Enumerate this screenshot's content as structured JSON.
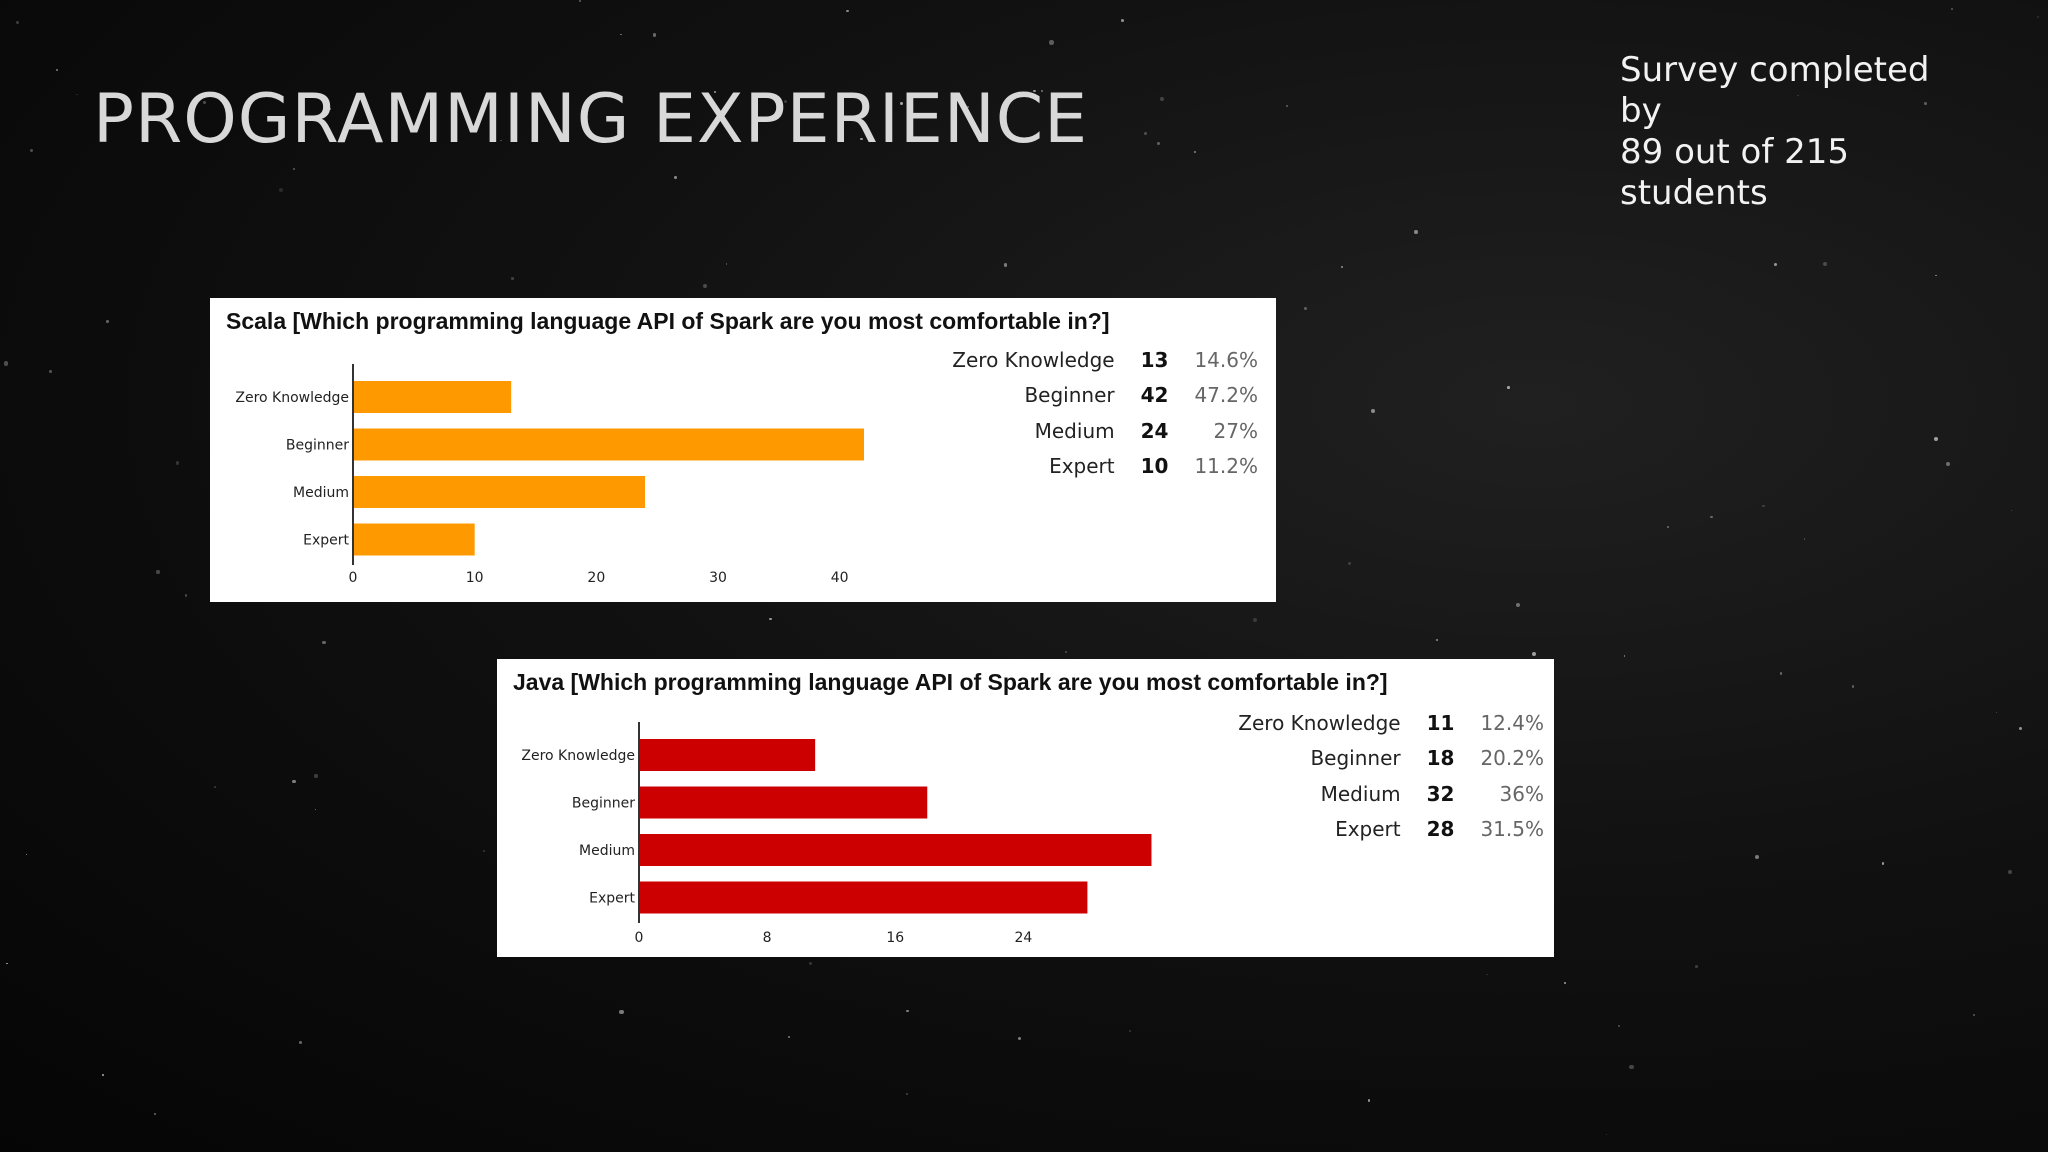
{
  "slide": {
    "title": "PROGRAMMING EXPERIENCE",
    "note_line1": "Survey completed by",
    "note_line2": "89 out of 215 students"
  },
  "colors": {
    "scala_bar": "#ff9900",
    "java_bar": "#cc0000",
    "background": "#0b0b0b"
  },
  "chart_data": [
    {
      "type": "bar",
      "orientation": "horizontal",
      "title": "Scala [Which programming language API of Spark are you most comfortable in?]",
      "categories": [
        "Zero Knowledge",
        "Beginner",
        "Medium",
        "Expert"
      ],
      "values": [
        13,
        42,
        24,
        10
      ],
      "percentages": [
        "14.6%",
        "47.2%",
        "27%",
        "11.2%"
      ],
      "xlim": [
        0,
        45
      ],
      "xticks": [
        0,
        10,
        20,
        30,
        40
      ],
      "xlabel": "",
      "ylabel": "",
      "color": "#ff9900",
      "legend": "none",
      "grid": false
    },
    {
      "type": "bar",
      "orientation": "horizontal",
      "title": "Java [Which programming language API of Spark are you most comfortable in?]",
      "categories": [
        "Zero Knowledge",
        "Beginner",
        "Medium",
        "Expert"
      ],
      "values": [
        11,
        18,
        32,
        28
      ],
      "percentages": [
        "12.4%",
        "20.2%",
        "36%",
        "31.5%"
      ],
      "xlim": [
        0,
        34
      ],
      "xticks": [
        0,
        8,
        16,
        24
      ],
      "xlabel": "",
      "ylabel": "",
      "color": "#cc0000",
      "legend": "none",
      "grid": false
    }
  ]
}
